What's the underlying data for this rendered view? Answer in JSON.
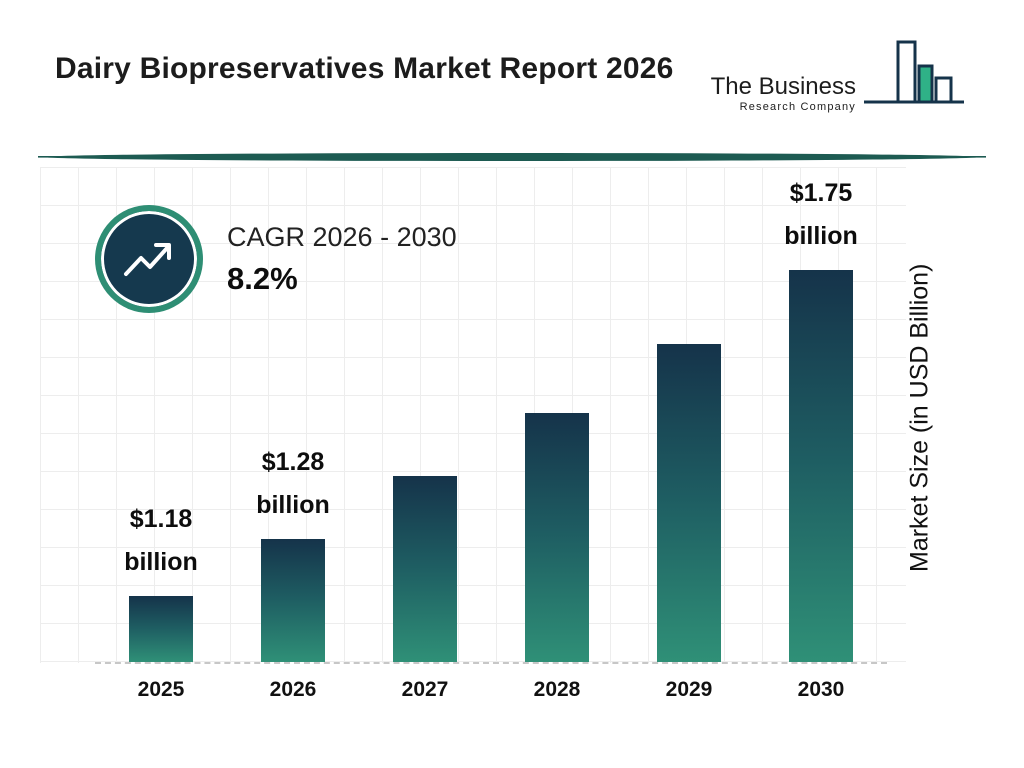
{
  "page": {
    "title": "Dairy Biopreservatives Market Report 2026"
  },
  "logo": {
    "line1": "The Business",
    "line2": "Research Company"
  },
  "cagr": {
    "label": "CAGR 2026 - 2030",
    "value": "8.2%"
  },
  "chart_data": {
    "type": "bar",
    "title": "Dairy Biopreservatives Market Report 2026",
    "categories": [
      "2025",
      "2026",
      "2027",
      "2028",
      "2029",
      "2030"
    ],
    "values": [
      1.18,
      1.28,
      1.39,
      1.5,
      1.62,
      1.75
    ],
    "value_labels": [
      [
        "$1.18",
        "billion"
      ],
      [
        "$1.28",
        "billion"
      ],
      null,
      null,
      null,
      [
        "$1.75",
        "billion"
      ]
    ],
    "xlabel": "",
    "ylabel": "Market Size (in USD Billion)",
    "ylim": [
      1.05,
      1.8
    ],
    "grid": true,
    "legend": false,
    "baseline_style": "dashed",
    "colors": {
      "bar_gradient_top": "#15334A",
      "bar_gradient_bottom": "#2F9077",
      "accent_teal": "#2E8E74",
      "navy": "#15394E",
      "divider": "#1D5B52",
      "logo_green": "#2FB187"
    }
  }
}
